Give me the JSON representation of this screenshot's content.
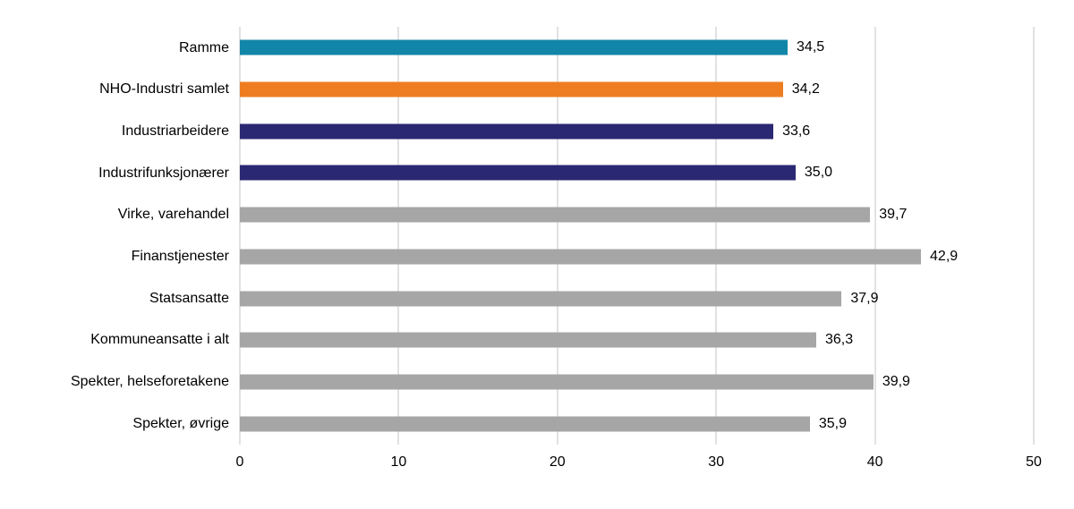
{
  "chart_data": {
    "type": "bar",
    "orientation": "horizontal",
    "title": "",
    "xlabel": "",
    "ylabel": "",
    "xlim": [
      0,
      50
    ],
    "x_ticks": [
      0,
      10,
      20,
      30,
      40,
      50
    ],
    "x_tick_labels": [
      "0",
      "10",
      "20",
      "30",
      "40",
      "50"
    ],
    "grid": true,
    "legend": "none",
    "categories": [
      "Ramme",
      "NHO-Industri samlet",
      "Industriarbeidere",
      "Industrifunksjonærer",
      "Virke, varehandel",
      "Finanstjenester",
      "Statsansatte",
      "Kommuneansatte i alt",
      "Spekter, helseforetakene",
      "Spekter, øvrige"
    ],
    "values": [
      34.5,
      34.2,
      33.6,
      35.0,
      39.7,
      42.9,
      37.9,
      36.3,
      39.9,
      35.9
    ],
    "value_labels": [
      "34,5",
      "34,2",
      "33,6",
      "35,0",
      "39,7",
      "42,9",
      "37,9",
      "36,3",
      "39,9",
      "35,9"
    ],
    "bar_colors": [
      "#1286a8",
      "#ee7d22",
      "#2b2873",
      "#2b2873",
      "#a6a6a6",
      "#a6a6a6",
      "#a6a6a6",
      "#a6a6a6",
      "#a6a6a6",
      "#a6a6a6"
    ]
  },
  "colors": {
    "gridline": "#c6c6c6",
    "text": "#000000",
    "background": "#ffffff"
  }
}
